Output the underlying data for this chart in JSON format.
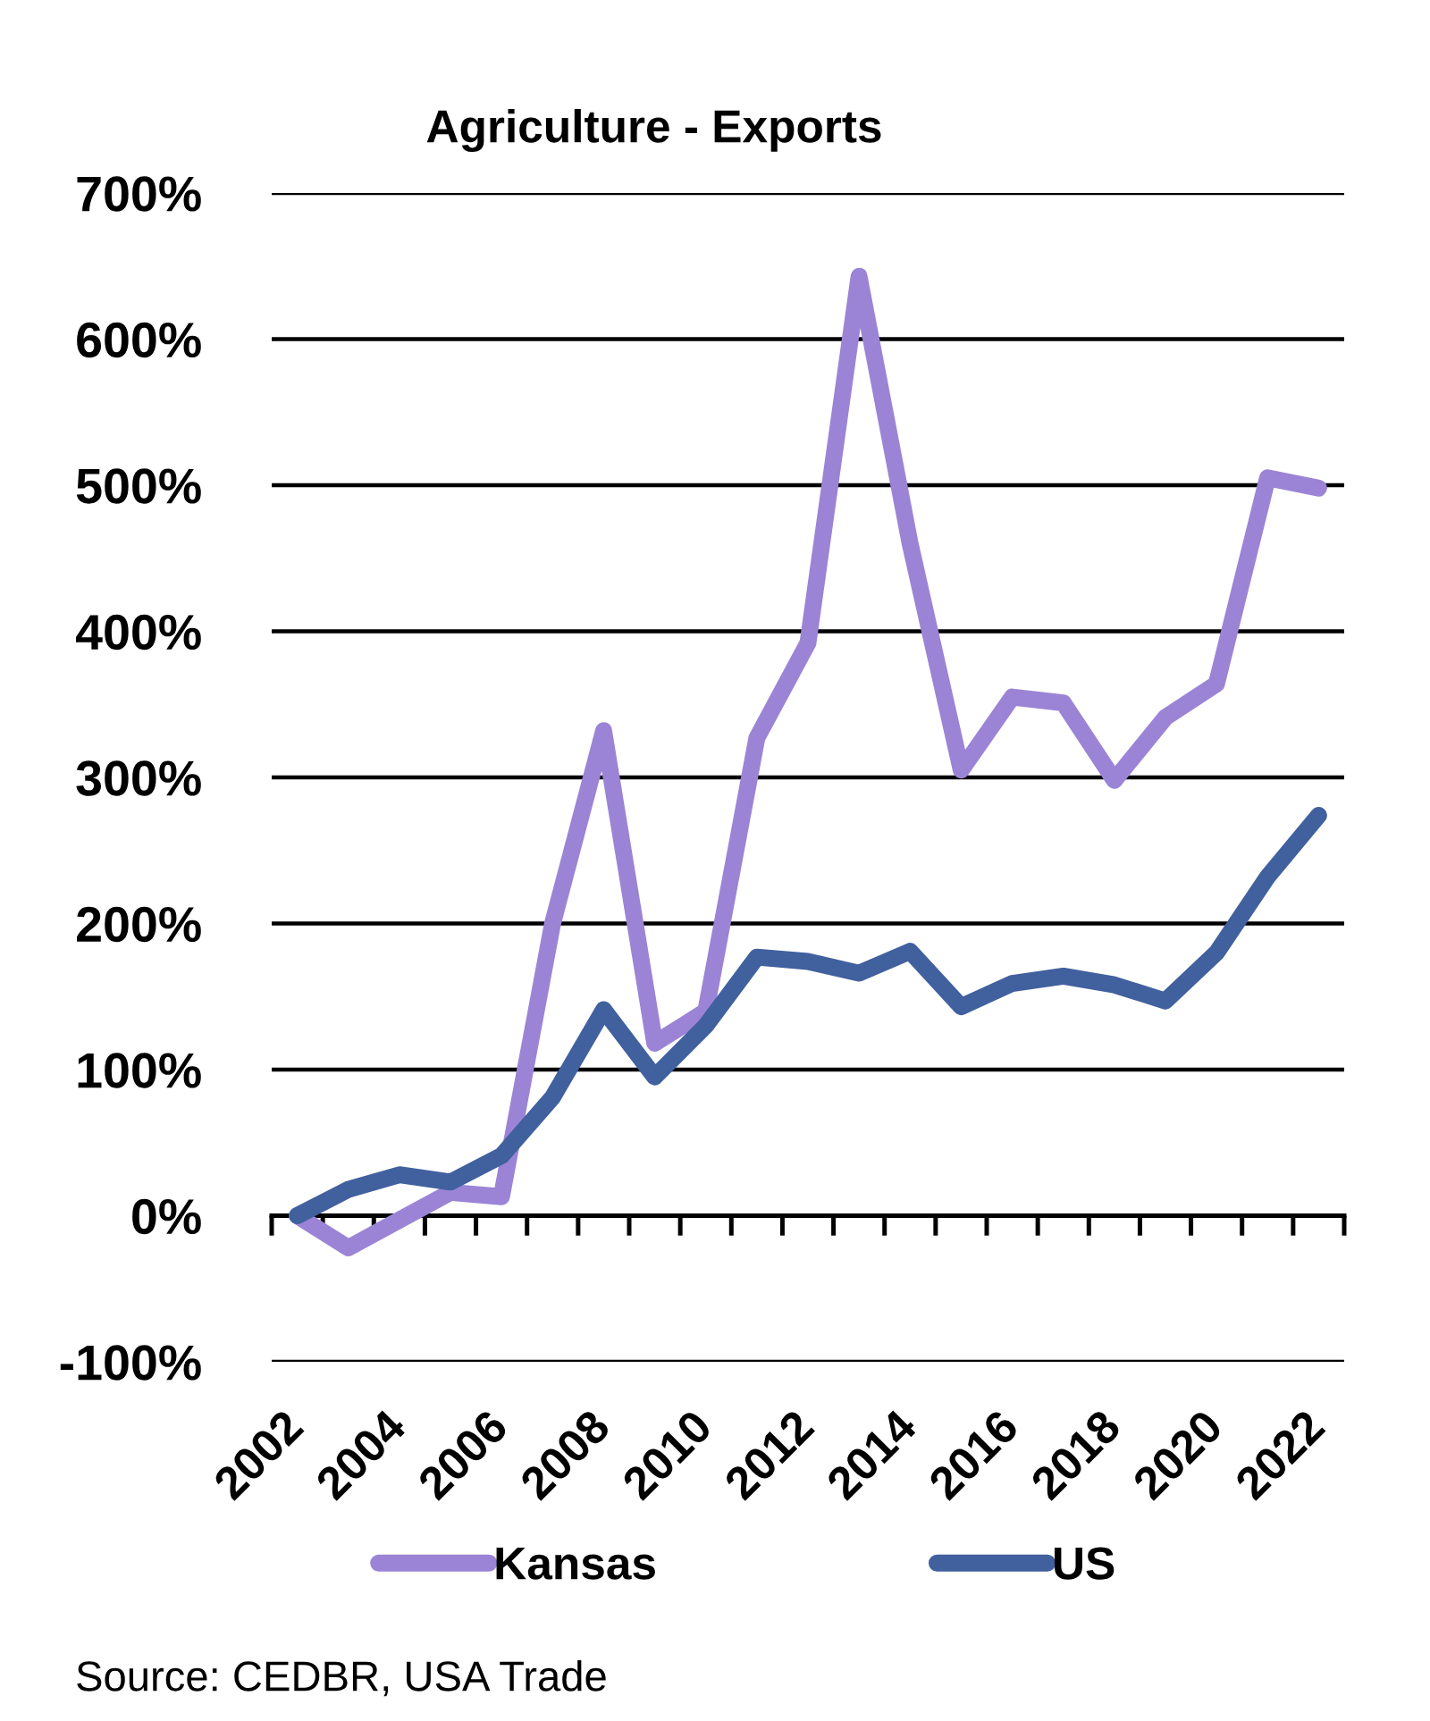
{
  "chart_data": {
    "type": "line",
    "title": "Agriculture - Exports",
    "categories": [
      "2002",
      null,
      "2004",
      null,
      "2006",
      null,
      "2008",
      null,
      "2010",
      null,
      "2012",
      null,
      "2014",
      null,
      "2016",
      null,
      "2018",
      null,
      "2020",
      null,
      "2022"
    ],
    "series": [
      {
        "name": "Kansas",
        "color": "#9b84d6",
        "values": [
          0,
          -22,
          -3,
          16,
          13,
          200,
          332,
          118,
          140,
          327,
          392,
          643,
          460,
          305,
          355,
          351,
          298,
          341,
          364,
          505,
          498
        ]
      },
      {
        "name": "US",
        "color": "#41609e",
        "values": [
          0,
          18,
          28,
          23,
          41,
          81,
          141,
          95,
          130,
          177,
          174,
          166,
          181,
          143,
          159,
          164,
          158,
          147,
          180,
          232,
          274
        ]
      }
    ],
    "ylim": [
      -100,
      700
    ],
    "yticks": [
      {
        "value": -100,
        "label": "-100%"
      },
      {
        "value": 0,
        "label": "0%"
      },
      {
        "value": 100,
        "label": "100%"
      },
      {
        "value": 200,
        "label": "200%"
      },
      {
        "value": 300,
        "label": "300%"
      },
      {
        "value": 400,
        "label": "400%"
      },
      {
        "value": 500,
        "label": "500%"
      },
      {
        "value": 600,
        "label": "600%"
      },
      {
        "value": 700,
        "label": "700%"
      }
    ],
    "grid": "y",
    "legend": "bottom",
    "line_style": "solid",
    "annotations": [
      "Source: CEDBR, USA Trade"
    ]
  }
}
